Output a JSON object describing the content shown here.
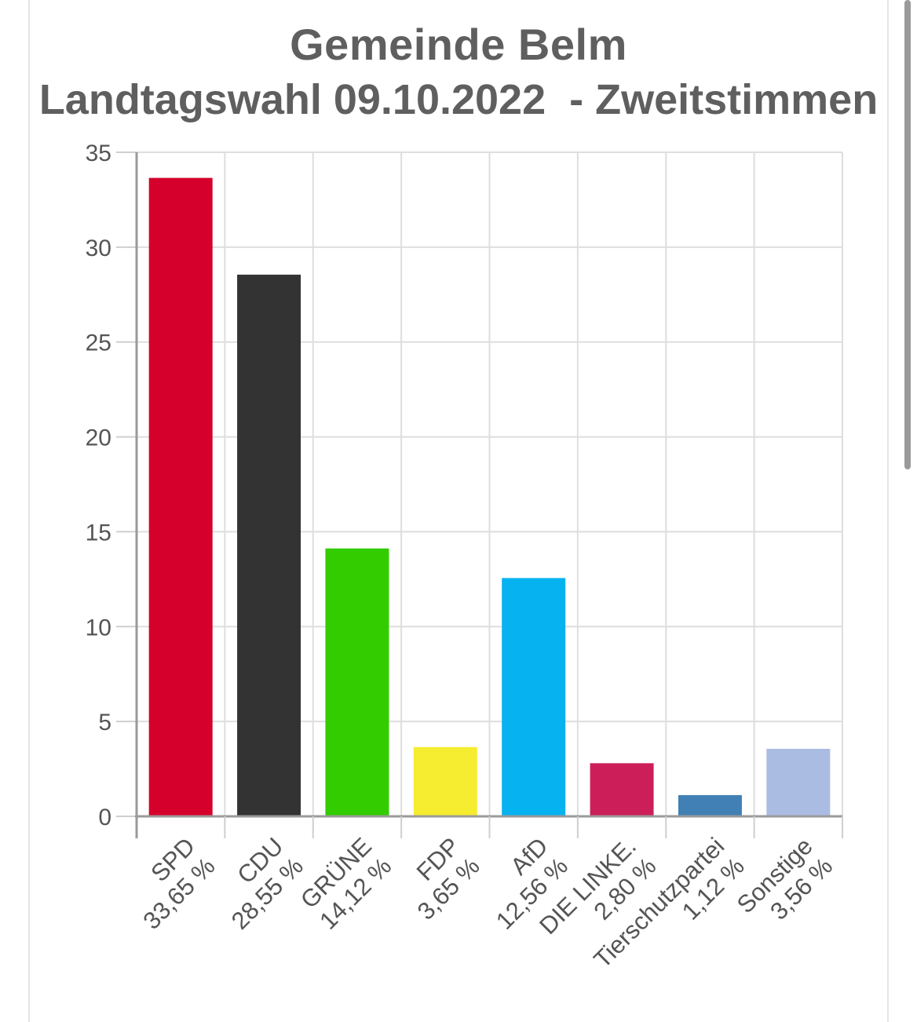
{
  "chart_data": {
    "type": "bar",
    "title": "Gemeinde Belm",
    "subtitle": "Landtagswahl 09.10.2022  - Zweitstimmen",
    "xlabel": "",
    "ylabel": "",
    "ylim": [
      0,
      35
    ],
    "yticks": [
      0,
      5,
      10,
      15,
      20,
      25,
      30,
      35
    ],
    "grid": true,
    "categories": [
      "SPD",
      "CDU",
      "GRÜNE",
      "FDP",
      "AfD",
      "DIE LINKE.",
      "Tierschutzpartei",
      "Sonstige"
    ],
    "value_labels": [
      "33,65 %",
      "28,55 %",
      "14,12 %",
      "3,65 %",
      "12,56 %",
      "2,80 %",
      "1,12 %",
      "3,56 %"
    ],
    "values": [
      33.65,
      28.55,
      14.12,
      3.65,
      12.56,
      2.8,
      1.12,
      3.56
    ],
    "colors": [
      "#d5002b",
      "#333333",
      "#33cc00",
      "#f6ec30",
      "#07b2f0",
      "#cc1f59",
      "#4180b4",
      "#abbce3"
    ]
  }
}
